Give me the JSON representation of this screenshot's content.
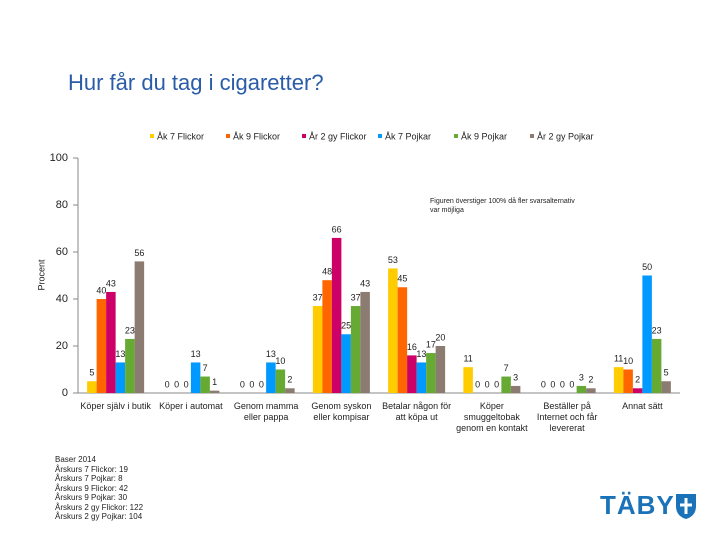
{
  "chart_data": {
    "type": "bar",
    "title": "Hur får du tag i cigaretter?",
    "y_label": "Procent",
    "annotation": "Figuren överstiger 100% då fler svarsalternativ var möjliga",
    "categories": [
      "Köper själv i butik",
      "Köper i automat",
      "Genom mamma eller pappa",
      "Genom syskon eller kompisar",
      "Betalar någon för att köpa ut",
      "Köper smuggeltobak genom en kontakt",
      "Beställer på Internet och får levererat",
      "Annat sätt"
    ],
    "series": [
      {
        "name": "Åk 7 Flickor",
        "color": "#ffcc00",
        "values": [
          5,
          0,
          0,
          37,
          53,
          11,
          0,
          11
        ]
      },
      {
        "name": "Åk 9 Flickor",
        "color": "#ff6600",
        "values": [
          40,
          0,
          0,
          48,
          45,
          0,
          0,
          10
        ]
      },
      {
        "name": "År 2 gy Flickor",
        "color": "#cc0066",
        "values": [
          43,
          0,
          0,
          66,
          16,
          0,
          0,
          2
        ]
      },
      {
        "name": "Åk 7 Pojkar",
        "color": "#0099ff",
        "values": [
          13,
          13,
          13,
          25,
          13,
          0,
          0,
          50
        ]
      },
      {
        "name": "Åk 9 Pojkar",
        "color": "#66aa33",
        "values": [
          23,
          7,
          10,
          37,
          17,
          7,
          3,
          23
        ]
      },
      {
        "name": "År 2 gy Pojkar",
        "color": "#8c7b70",
        "values": [
          56,
          1,
          2,
          43,
          20,
          3,
          2,
          5
        ]
      }
    ],
    "ylim": [
      0,
      100
    ],
    "yticks": [
      0,
      20,
      40,
      60,
      80,
      100
    ],
    "legend": "top"
  },
  "footer": {
    "bases": [
      "Baser 2014",
      "Årskurs 7 Flickor: 19",
      "Årskurs 7 Pojkar: 8",
      "Årskurs 9 Flickor: 42",
      "Årskurs 9 Pojkar: 30",
      "Årskurs 2 gy Flickor: 122",
      "Årskurs 2 gy Pojkar: 104"
    ],
    "logo": "TÄBY"
  }
}
